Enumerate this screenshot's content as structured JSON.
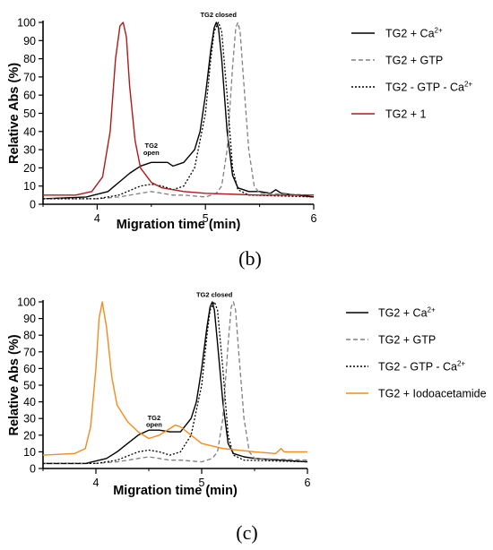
{
  "chart_data": [
    {
      "type": "line",
      "panel": "(b)",
      "xlabel": "Migration time (min)",
      "ylabel": "Relative Abs (%)",
      "xlim": [
        3.5,
        6
      ],
      "ylim": [
        0,
        100
      ],
      "xticks": [
        "4",
        "5",
        "6"
      ],
      "yticks": [
        "0",
        "10",
        "20",
        "30",
        "40",
        "50",
        "60",
        "70",
        "80",
        "90",
        "100"
      ],
      "annotations": [
        {
          "text": "TG2 closed",
          "x": 5.12,
          "y": 103
        },
        {
          "text": "TG2",
          "x": 4.5,
          "y": 31
        },
        {
          "text": "open",
          "x": 4.5,
          "y": 27
        }
      ],
      "legend_position": "right",
      "series": [
        {
          "name": "TG2 + Ca",
          "sup": "2+",
          "color": "#000000",
          "dash": "solid",
          "x": [
            3.5,
            3.9,
            4.1,
            4.2,
            4.3,
            4.4,
            4.5,
            4.6,
            4.65,
            4.7,
            4.8,
            4.9,
            4.95,
            5.0,
            5.05,
            5.08,
            5.1,
            5.12,
            5.15,
            5.2,
            5.25,
            5.3,
            5.4,
            5.5,
            5.6,
            5.65,
            5.7,
            6.0
          ],
          "y": [
            3,
            4,
            7,
            12,
            17,
            21,
            23,
            23,
            23,
            21,
            23,
            30,
            40,
            60,
            85,
            97,
            100,
            97,
            80,
            40,
            16,
            9,
            7,
            7,
            6,
            8,
            6,
            4
          ]
        },
        {
          "name": "TG2 + GTP",
          "color": "#808080",
          "dash": "dash",
          "x": [
            3.5,
            4.0,
            4.2,
            4.4,
            4.5,
            4.6,
            4.7,
            4.8,
            5.0,
            5.1,
            5.15,
            5.2,
            5.25,
            5.28,
            5.3,
            5.32,
            5.35,
            5.4,
            5.45,
            5.5,
            6.0
          ],
          "y": [
            3,
            3,
            4,
            6,
            7,
            6,
            5,
            5,
            4,
            6,
            10,
            30,
            75,
            97,
            100,
            95,
            70,
            30,
            10,
            6,
            5
          ]
        },
        {
          "name": "TG2 - GTP - Ca",
          "sup": "2+",
          "color": "#000000",
          "dash": "dot",
          "x": [
            3.5,
            4.0,
            4.2,
            4.4,
            4.5,
            4.6,
            4.7,
            4.8,
            4.9,
            5.0,
            5.05,
            5.08,
            5.12,
            5.15,
            5.2,
            5.25,
            5.3,
            5.4,
            6.0
          ],
          "y": [
            3,
            3,
            5,
            10,
            11,
            10,
            8,
            10,
            20,
            50,
            80,
            95,
            100,
            95,
            60,
            20,
            8,
            5,
            4
          ]
        },
        {
          "name": "TG2 + 1",
          "color": "#b01a1a",
          "dash": "solid",
          "x": [
            3.5,
            3.8,
            3.95,
            4.05,
            4.12,
            4.17,
            4.21,
            4.24,
            4.27,
            4.3,
            4.35,
            4.4,
            4.5,
            4.6,
            4.8,
            5.0,
            5.5,
            6.0
          ],
          "y": [
            5,
            5,
            7,
            15,
            40,
            80,
            98,
            100,
            92,
            65,
            35,
            20,
            12,
            9,
            7,
            6,
            5,
            5
          ]
        }
      ]
    },
    {
      "type": "line",
      "panel": "(c)",
      "xlabel": "Migration time (min)",
      "ylabel": "Relative Abs (%)",
      "xlim": [
        3.5,
        6
      ],
      "ylim": [
        0,
        100
      ],
      "xticks": [
        "4",
        "5",
        "6"
      ],
      "yticks": [
        "0",
        "10",
        "20",
        "30",
        "40",
        "50",
        "60",
        "70",
        "80",
        "90",
        "100"
      ],
      "annotations": [
        {
          "text": "TG2 closed",
          "x": 5.12,
          "y": 103
        },
        {
          "text": "TG2",
          "x": 4.55,
          "y": 29
        },
        {
          "text": "open",
          "x": 4.55,
          "y": 25
        }
      ],
      "legend_position": "right",
      "series": [
        {
          "name": "TG2 + Ca",
          "sup": "2+",
          "color": "#000000",
          "dash": "solid",
          "x": [
            3.5,
            3.9,
            4.1,
            4.2,
            4.3,
            4.4,
            4.5,
            4.6,
            4.7,
            4.8,
            4.9,
            4.95,
            5.0,
            5.05,
            5.08,
            5.1,
            5.12,
            5.15,
            5.2,
            5.25,
            5.3,
            5.4,
            5.5,
            6.0
          ],
          "y": [
            3,
            3,
            6,
            10,
            15,
            20,
            23,
            23,
            22,
            22,
            30,
            40,
            60,
            85,
            97,
            100,
            95,
            75,
            40,
            15,
            9,
            7,
            6,
            4
          ]
        },
        {
          "name": "TG2 + GTP",
          "color": "#808080",
          "dash": "dash",
          "x": [
            3.5,
            4.0,
            4.2,
            4.4,
            4.5,
            4.6,
            4.7,
            4.8,
            5.0,
            5.1,
            5.15,
            5.2,
            5.25,
            5.28,
            5.3,
            5.32,
            5.35,
            5.4,
            5.45,
            5.5,
            6.0
          ],
          "y": [
            3,
            3,
            4,
            6,
            7,
            6,
            5,
            5,
            4,
            6,
            10,
            30,
            75,
            97,
            100,
            95,
            70,
            30,
            10,
            6,
            5
          ]
        },
        {
          "name": "TG2 - GTP - Ca",
          "sup": "2+",
          "color": "#000000",
          "dash": "dot",
          "x": [
            3.5,
            4.0,
            4.2,
            4.4,
            4.5,
            4.6,
            4.7,
            4.8,
            4.9,
            5.0,
            5.05,
            5.08,
            5.12,
            5.15,
            5.2,
            5.25,
            5.3,
            5.4,
            6.0
          ],
          "y": [
            3,
            3,
            5,
            10,
            11,
            10,
            8,
            10,
            20,
            50,
            80,
            95,
            100,
            95,
            60,
            20,
            8,
            5,
            4
          ]
        },
        {
          "name": "TG2 + Iodoacetamide",
          "color": "#f28c1c",
          "dash": "solid",
          "x": [
            3.5,
            3.8,
            3.9,
            3.95,
            4.0,
            4.03,
            4.06,
            4.1,
            4.15,
            4.2,
            4.3,
            4.4,
            4.5,
            4.6,
            4.7,
            4.75,
            4.8,
            4.9,
            5.0,
            5.2,
            5.5,
            5.7,
            5.75,
            5.78,
            6.0
          ],
          "y": [
            8,
            9,
            12,
            25,
            60,
            90,
            100,
            85,
            55,
            38,
            28,
            22,
            18,
            20,
            24,
            26,
            25,
            20,
            15,
            12,
            10,
            9,
            12,
            10,
            10
          ]
        }
      ]
    }
  ]
}
